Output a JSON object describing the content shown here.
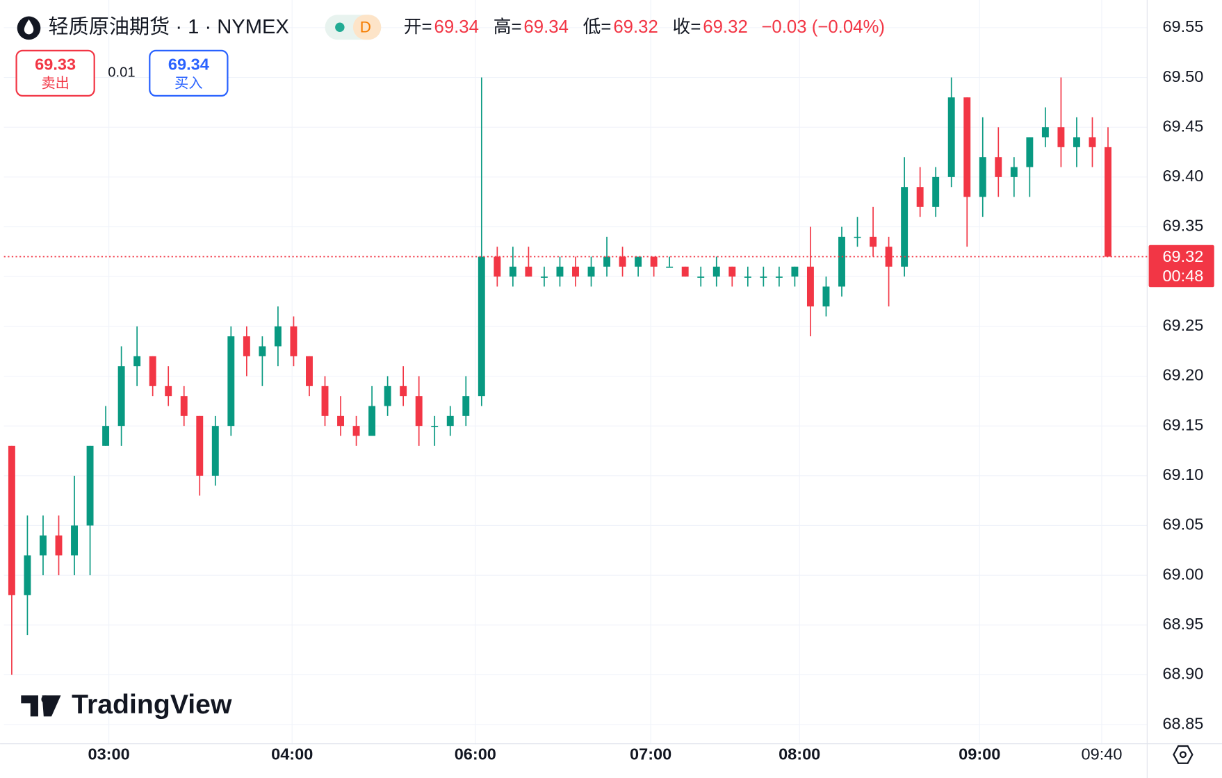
{
  "header": {
    "symbol": "轻质原油期货 · 1 · NYMEX",
    "interval_badge": "D",
    "ohlc": [
      {
        "label": "开=",
        "value": "69.34"
      },
      {
        "label": "高=",
        "value": "69.34"
      },
      {
        "label": "低=",
        "value": "69.32"
      },
      {
        "label": "收=",
        "value": "69.32"
      }
    ],
    "change": "−0.03 (−0.04%)",
    "sell": {
      "price": "69.33",
      "label": "卖出"
    },
    "spread": "0.01",
    "buy": {
      "price": "69.34",
      "label": "买入"
    },
    "logo": "TradingView"
  },
  "chart_data": {
    "type": "candlestick",
    "up_color": "#089981",
    "down_color": "#f23645",
    "grid": true,
    "xlim": [
      0,
      73
    ],
    "xticks": [
      {
        "value": 6.7,
        "label": "03:00"
      },
      {
        "value": 18.4,
        "label": "04:00"
      },
      {
        "value": 30.1,
        "label": "06:00"
      },
      {
        "value": 41.3,
        "label": "07:00"
      },
      {
        "value": 50.8,
        "label": "08:00"
      },
      {
        "value": 62.3,
        "label": "09:00"
      },
      {
        "value": 70.1,
        "label": "09:40"
      }
    ],
    "ylim": [
      68.83,
      69.57
    ],
    "yticks": [
      68.85,
      {
        "value": 68.9,
        "label": "68.90"
      },
      68.95,
      {
        "value": 69.0,
        "label": "69.00"
      },
      69.05,
      {
        "value": 69.1,
        "label": "69.10"
      },
      69.15,
      {
        "value": 69.2,
        "label": "69.20"
      },
      69.25,
      {
        "value": 69.3,
        "label": "69.30"
      },
      69.35,
      {
        "value": 69.4,
        "label": "69.40"
      },
      69.45,
      {
        "value": 69.5,
        "label": "69.50"
      },
      69.55
    ],
    "last_price": 69.32,
    "countdown": "00:48",
    "open": [
      69.13,
      68.98,
      69.02,
      69.04,
      69.02,
      69.05,
      69.13,
      69.15,
      69.21,
      69.22,
      69.19,
      69.18,
      69.16,
      69.1,
      69.15,
      69.24,
      69.22,
      69.23,
      69.25,
      69.22,
      69.19,
      69.16,
      69.15,
      69.14,
      69.17,
      69.19,
      69.18,
      69.15,
      69.15,
      69.16,
      69.18,
      69.32,
      69.3,
      69.31,
      69.3,
      69.3,
      69.31,
      69.3,
      69.31,
      69.32,
      69.31,
      69.32,
      69.31,
      69.31,
      69.3,
      69.3,
      69.31,
      69.3,
      69.3,
      69.3,
      69.3,
      69.31,
      69.27,
      69.29,
      69.34,
      69.34,
      69.33,
      69.31,
      69.39,
      69.37,
      69.4,
      69.48,
      69.38,
      69.42,
      69.4,
      69.41,
      69.44,
      69.45,
      69.43,
      69.44,
      69.43
    ],
    "high": [
      69.13,
      69.06,
      69.06,
      69.06,
      69.1,
      69.13,
      69.17,
      69.23,
      69.25,
      69.22,
      69.21,
      69.19,
      69.16,
      69.16,
      69.25,
      69.25,
      69.24,
      69.27,
      69.26,
      69.22,
      69.2,
      69.18,
      69.16,
      69.19,
      69.2,
      69.21,
      69.2,
      69.16,
      69.17,
      69.2,
      69.5,
      69.33,
      69.33,
      69.33,
      69.31,
      69.32,
      69.32,
      69.32,
      69.34,
      69.33,
      69.32,
      69.32,
      69.32,
      69.31,
      69.31,
      69.32,
      69.31,
      69.31,
      69.31,
      69.31,
      69.31,
      69.35,
      69.3,
      69.35,
      69.36,
      69.37,
      69.34,
      69.42,
      69.41,
      69.41,
      69.5,
      69.48,
      69.46,
      69.45,
      69.42,
      69.44,
      69.47,
      69.5,
      69.46,
      69.46,
      69.45
    ],
    "low": [
      68.9,
      68.94,
      69.0,
      69.0,
      69.0,
      69.0,
      69.13,
      69.13,
      69.19,
      69.18,
      69.17,
      69.15,
      69.08,
      69.09,
      69.14,
      69.2,
      69.19,
      69.21,
      69.21,
      69.18,
      69.15,
      69.14,
      69.13,
      69.14,
      69.16,
      69.17,
      69.13,
      69.13,
      69.14,
      69.15,
      69.17,
      69.29,
      69.29,
      69.3,
      69.29,
      69.29,
      69.29,
      69.29,
      69.3,
      69.3,
      69.3,
      69.3,
      69.31,
      69.3,
      69.29,
      69.29,
      69.29,
      69.29,
      69.29,
      69.29,
      69.29,
      69.24,
      69.26,
      69.28,
      69.33,
      69.32,
      69.27,
      69.3,
      69.36,
      69.36,
      69.39,
      69.33,
      69.36,
      69.38,
      69.38,
      69.38,
      69.43,
      69.41,
      69.41,
      69.41,
      69.32
    ],
    "close": [
      68.98,
      69.02,
      69.04,
      69.02,
      69.05,
      69.13,
      69.15,
      69.21,
      69.22,
      69.19,
      69.18,
      69.16,
      69.1,
      69.15,
      69.24,
      69.22,
      69.23,
      69.25,
      69.22,
      69.19,
      69.16,
      69.15,
      69.14,
      69.17,
      69.19,
      69.18,
      69.15,
      69.15,
      69.16,
      69.18,
      69.32,
      69.3,
      69.31,
      69.3,
      69.3,
      69.31,
      69.3,
      69.31,
      69.32,
      69.31,
      69.32,
      69.31,
      69.31,
      69.3,
      69.3,
      69.31,
      69.3,
      69.3,
      69.3,
      69.3,
      69.31,
      69.27,
      69.29,
      69.34,
      69.34,
      69.33,
      69.31,
      69.39,
      69.37,
      69.4,
      69.48,
      69.38,
      69.42,
      69.4,
      69.41,
      69.44,
      69.45,
      69.43,
      69.44,
      69.43,
      69.32
    ]
  }
}
